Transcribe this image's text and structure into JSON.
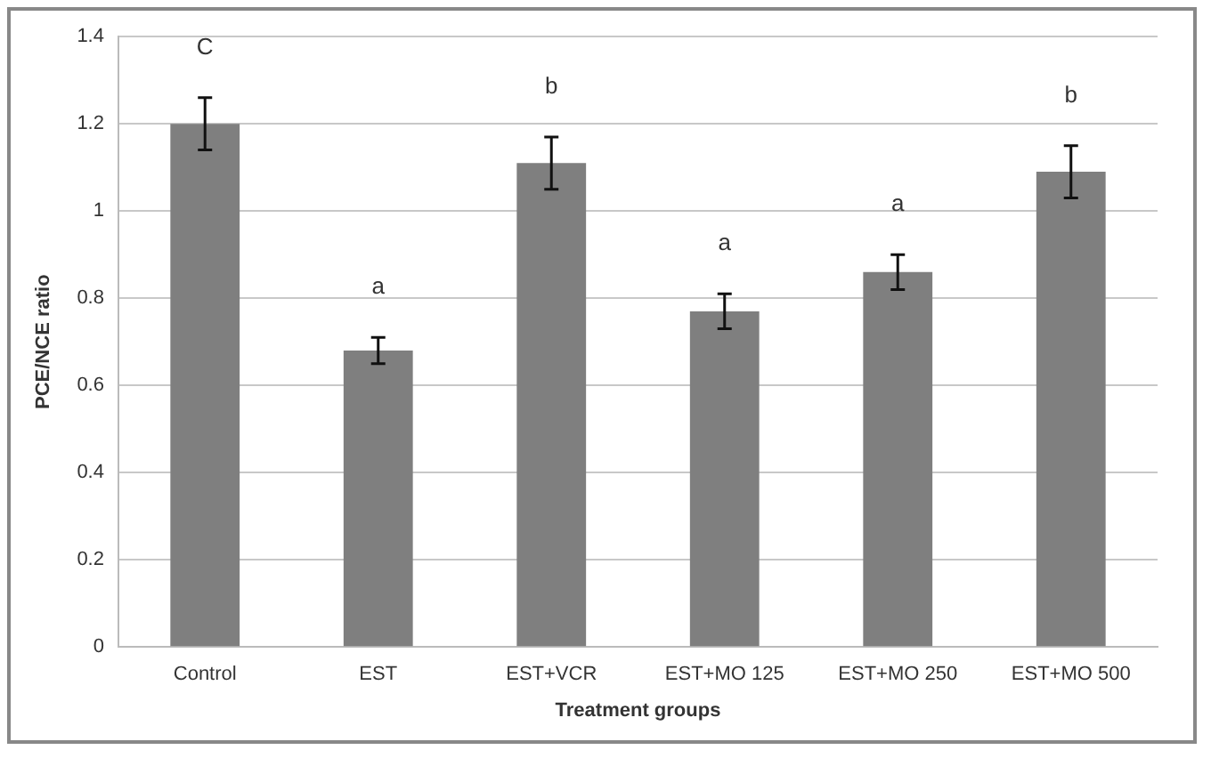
{
  "chart_data": {
    "type": "bar",
    "xlabel": "Treatment groups",
    "ylabel": "PCE/NCE ratio",
    "categories": [
      "Control",
      "EST",
      "EST+VCR",
      "EST+MO 125",
      "EST+MO 250",
      "EST+MO 500"
    ],
    "values": [
      1.2,
      0.68,
      1.11,
      0.77,
      0.86,
      1.09
    ],
    "errors": [
      0.06,
      0.03,
      0.06,
      0.04,
      0.04,
      0.06
    ],
    "color": "#7f7f7f",
    "ylim": [
      0,
      1.4
    ],
    "yticks": [
      0,
      0.2,
      0.4,
      0.6,
      0.8,
      1,
      1.2,
      1.4
    ],
    "grid": "y",
    "legend": false,
    "annotations": [
      "C",
      "a",
      "b",
      "a",
      "a",
      "b"
    ]
  }
}
